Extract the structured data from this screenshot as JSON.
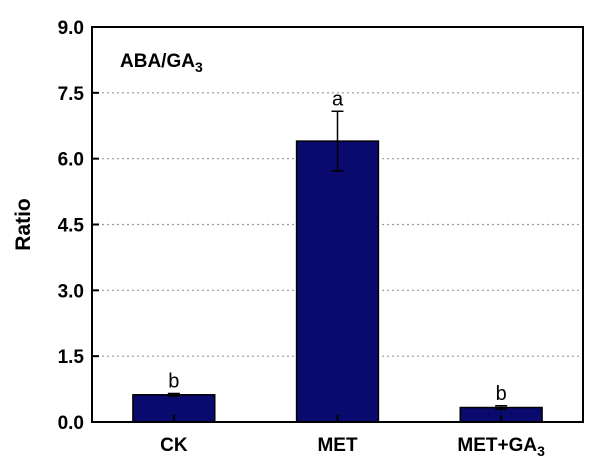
{
  "chart_data": {
    "type": "bar",
    "panel_label": "ABA/GA",
    "panel_label_sub": "3",
    "ylabel": "Ratio",
    "xlabel": "",
    "ylim": [
      0,
      9.0
    ],
    "yticks": [
      "0.0",
      "1.5",
      "3.0",
      "4.5",
      "6.0",
      "7.5",
      "9.0"
    ],
    "grid": true,
    "categories": [
      {
        "label": "CK",
        "sub": ""
      },
      {
        "label": "MET",
        "sub": ""
      },
      {
        "label": "MET+GA",
        "sub": "3"
      }
    ],
    "values": [
      0.62,
      6.4,
      0.33
    ],
    "errors": [
      0.03,
      0.68,
      0.04
    ],
    "significance": [
      "b",
      "a",
      "b"
    ],
    "bar_color": "#0a0a6e"
  }
}
